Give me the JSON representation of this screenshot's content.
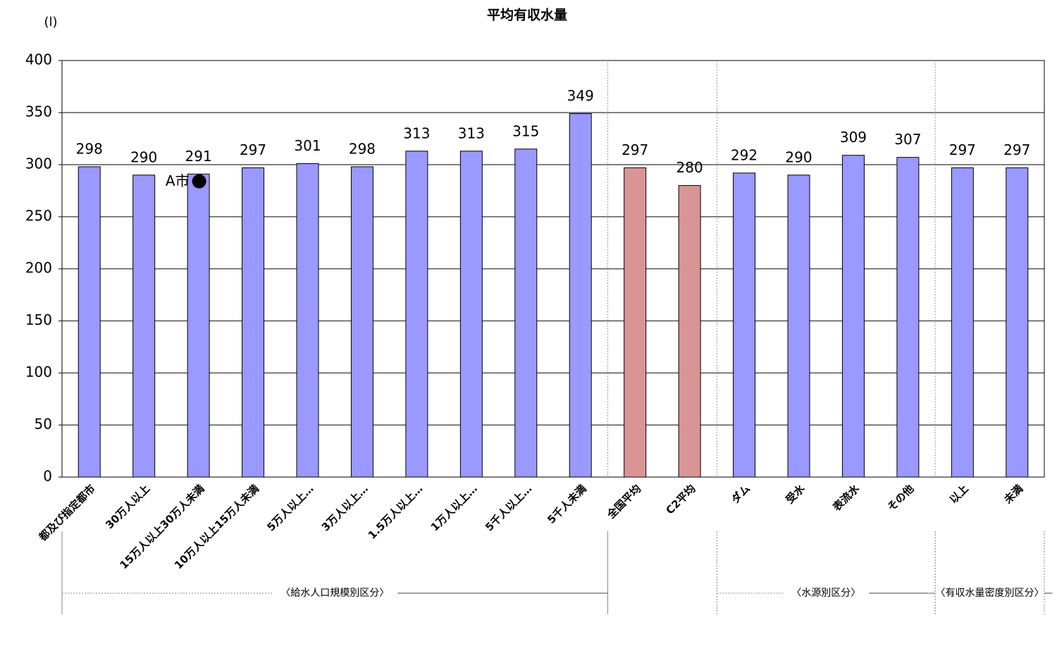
{
  "chart_data": {
    "type": "bar",
    "title": "平均有収水量",
    "y_unit": "(l)",
    "categories": [
      "都及び指定都市",
      "30万人以上",
      "15万人以上30万人未満",
      "10万人以上15万人未満",
      "5万人以上…",
      "3万人以上…",
      "1.5万人以上…",
      "1万人以上…",
      "5千人以上…",
      "5千人未満",
      "全国平均",
      "C2平均",
      "ダム",
      "受水",
      "表流水",
      "その他",
      "以上",
      "未満"
    ],
    "values": [
      298,
      290,
      291,
      297,
      301,
      298,
      313,
      313,
      315,
      349,
      297,
      280,
      292,
      290,
      309,
      307,
      297,
      297
    ],
    "colors": [
      "#9999ff",
      "#9999ff",
      "#9999ff",
      "#9999ff",
      "#9999ff",
      "#9999ff",
      "#9999ff",
      "#9999ff",
      "#9999ff",
      "#9999ff",
      "#d99594",
      "#d99594",
      "#9999ff",
      "#9999ff",
      "#9999ff",
      "#9999ff",
      "#9999ff",
      "#9999ff"
    ],
    "ylim": [
      0,
      400
    ],
    "yticks": [
      0,
      50,
      100,
      150,
      200,
      250,
      300,
      350,
      400
    ],
    "grid": true,
    "markers": [
      {
        "name": "A市",
        "category": "15万人以上30万人未満",
        "value": 284
      }
    ],
    "groups": [
      {
        "label": "〈給水人口規模別区分〉"
      },
      {
        "label": "〈水源別区分〉"
      },
      {
        "label": "〈有収水量密度別区分〉"
      }
    ]
  }
}
